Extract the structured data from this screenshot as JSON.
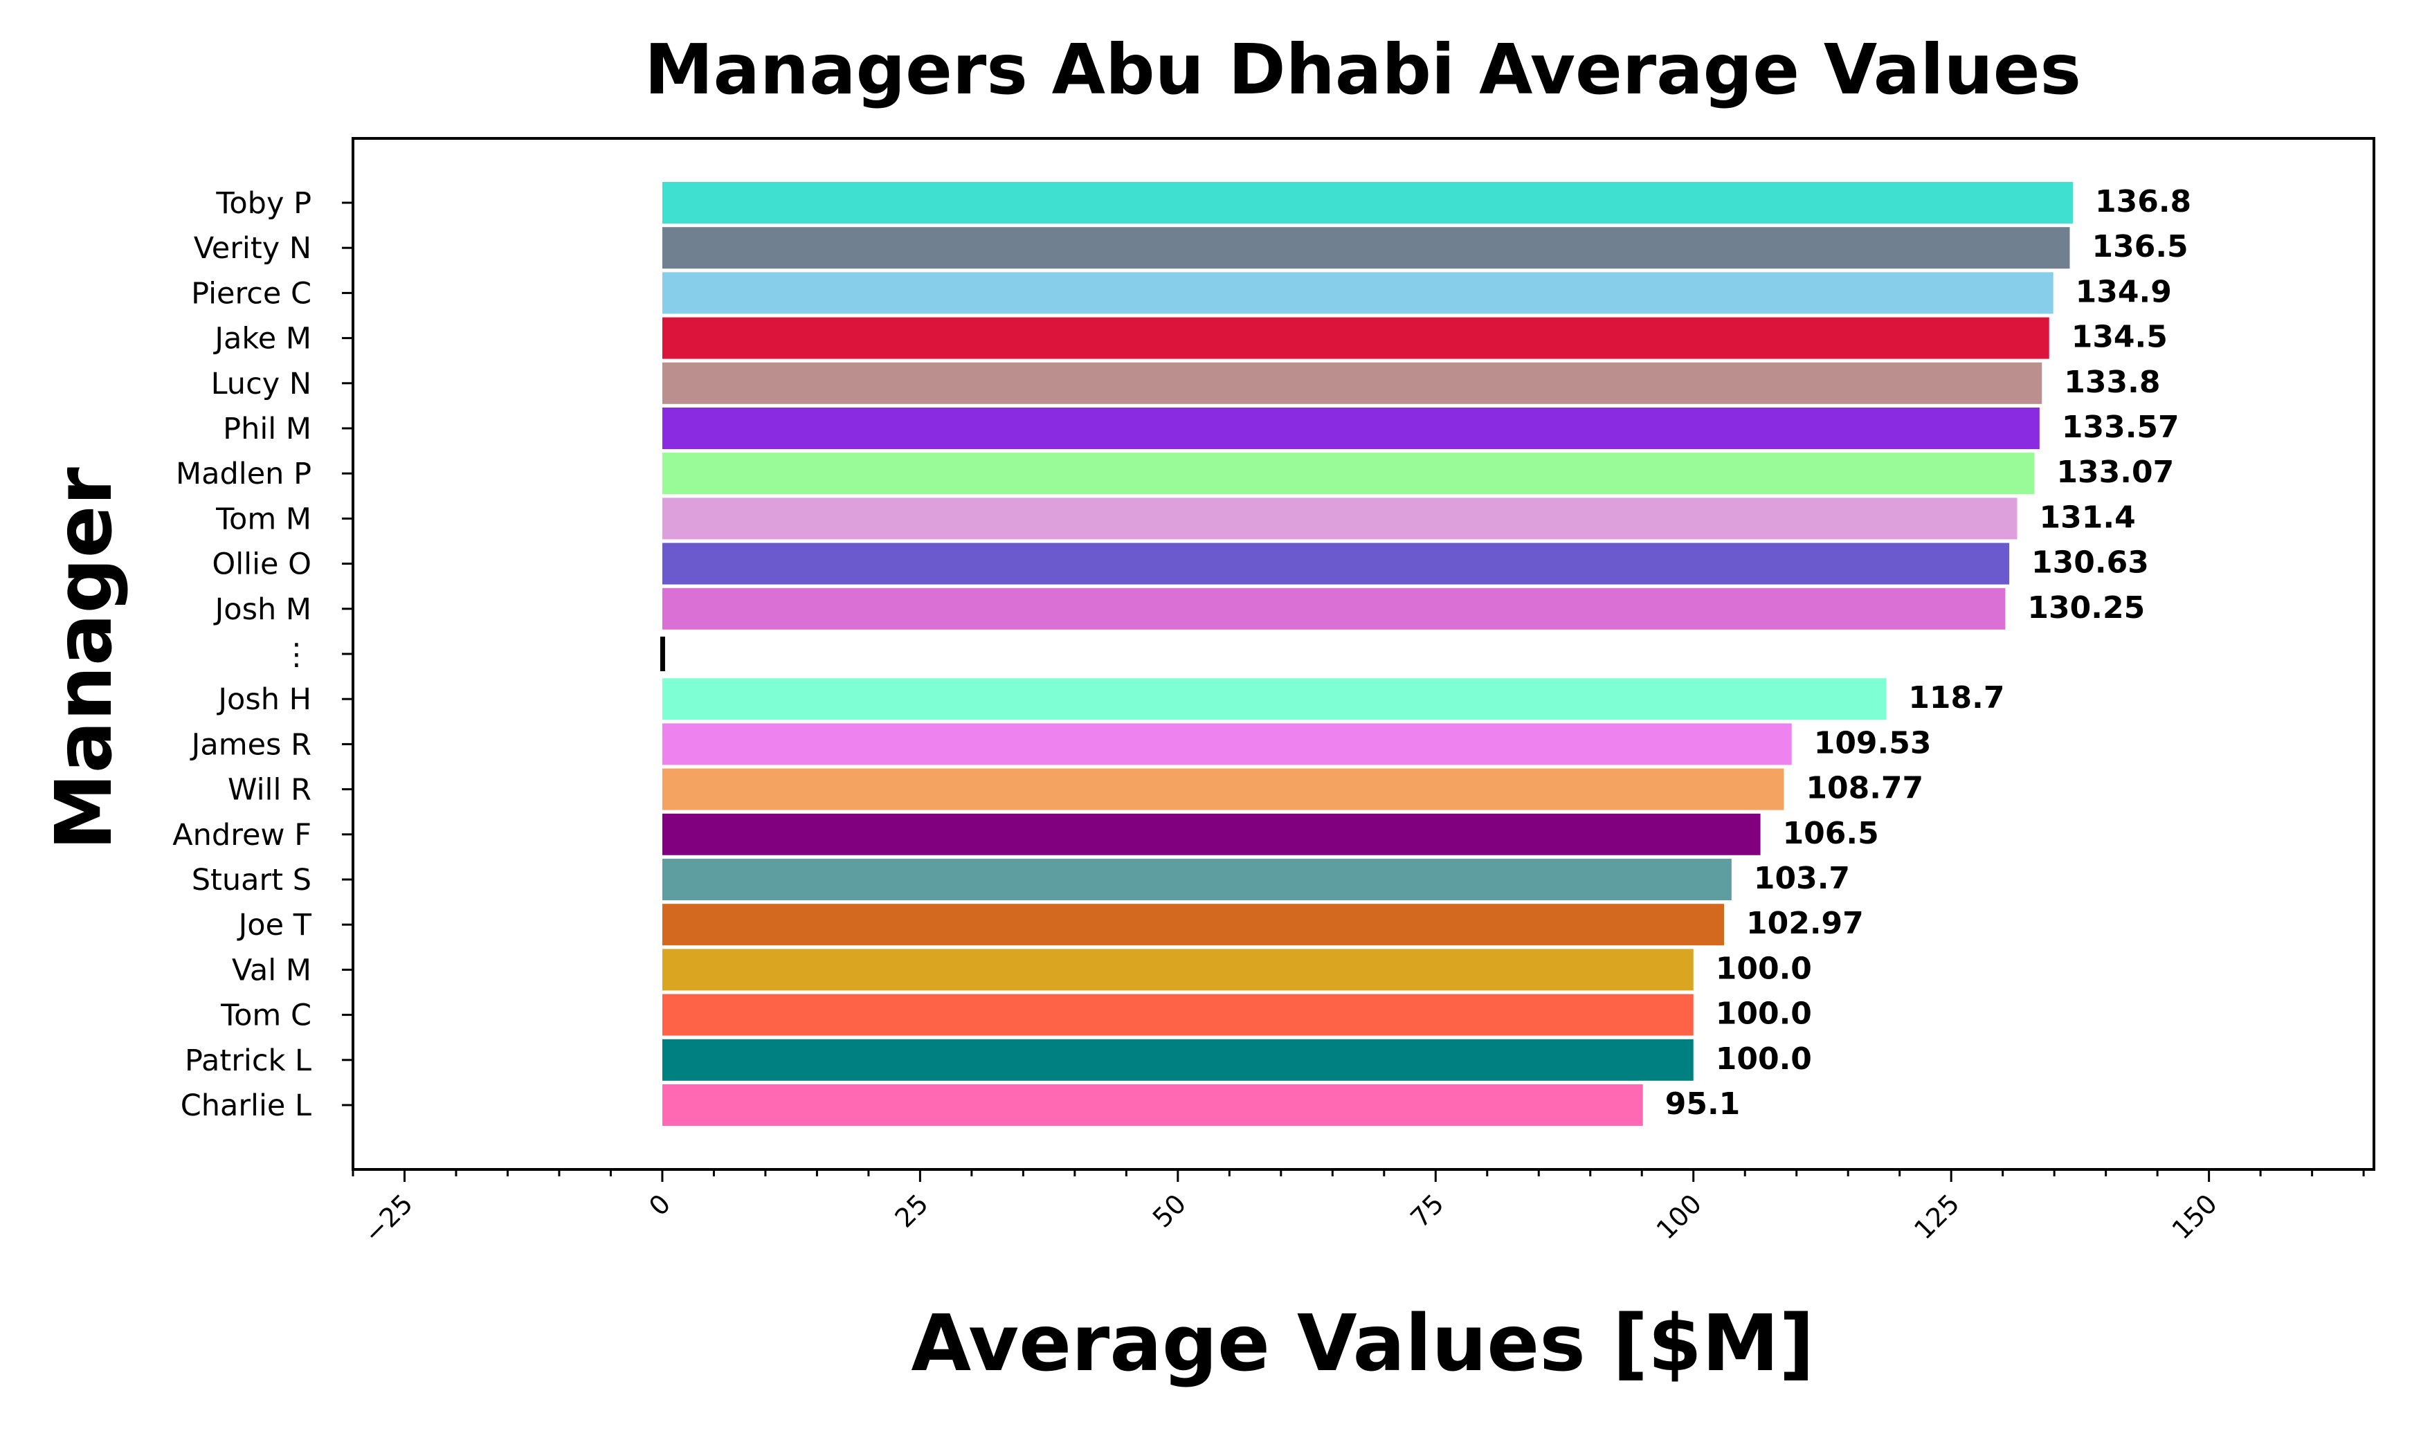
{
  "chart_data": {
    "type": "bar",
    "orientation": "horizontal",
    "title": "Managers Abu Dhabi Average Values",
    "xlabel": "Average Values [$M]",
    "ylabel": "Manager",
    "xlim": [
      -30,
      166
    ],
    "xticks": [
      -25,
      0,
      25,
      50,
      75,
      100,
      125,
      150
    ],
    "xtick_labels": [
      "−25",
      "0",
      "25",
      "50",
      "75",
      "100",
      "125",
      "150"
    ],
    "minor_xtick_step": 5,
    "grid": false,
    "legend": "none",
    "categories": [
      "Toby P",
      "Verity N",
      "Pierce C",
      "Jake M",
      "Lucy N",
      "Phil M",
      "Madlen P",
      "Tom M",
      "Ollie O",
      "Josh M",
      "⋮",
      "Josh H",
      "James R",
      "Will R",
      "Andrew F",
      "Stuart S",
      "Joe T",
      "Val M",
      "Tom C",
      "Patrick L",
      "Charlie L"
    ],
    "values": [
      136.8,
      136.5,
      134.9,
      134.5,
      133.8,
      133.57,
      133.07,
      131.4,
      130.63,
      130.25,
      null,
      118.7,
      109.53,
      108.77,
      106.5,
      103.7,
      102.97,
      100.0,
      100.0,
      100.0,
      95.1
    ],
    "value_labels": [
      "136.8",
      "136.5",
      "134.9",
      "134.5",
      "133.8",
      "133.57",
      "133.07",
      "131.4",
      "130.63",
      "130.25",
      "",
      "118.7",
      "109.53",
      "108.77",
      "106.5",
      "103.7",
      "102.97",
      "100.0",
      "100.0",
      "100.0",
      "95.1"
    ],
    "colors": [
      "#40E0D0",
      "#708090",
      "#87CEEB",
      "#DC143C",
      "#BC8F8F",
      "#8A2BE2",
      "#98FB98",
      "#DDA0DD",
      "#6A5ACD",
      "#DA70D6",
      "#000000",
      "#7FFFD4",
      "#EE82EE",
      "#F4A460",
      "#800080",
      "#5F9EA0",
      "#D2691E",
      "#DAA520",
      "#FF6347",
      "#008080",
      "#FF69B4"
    ]
  }
}
